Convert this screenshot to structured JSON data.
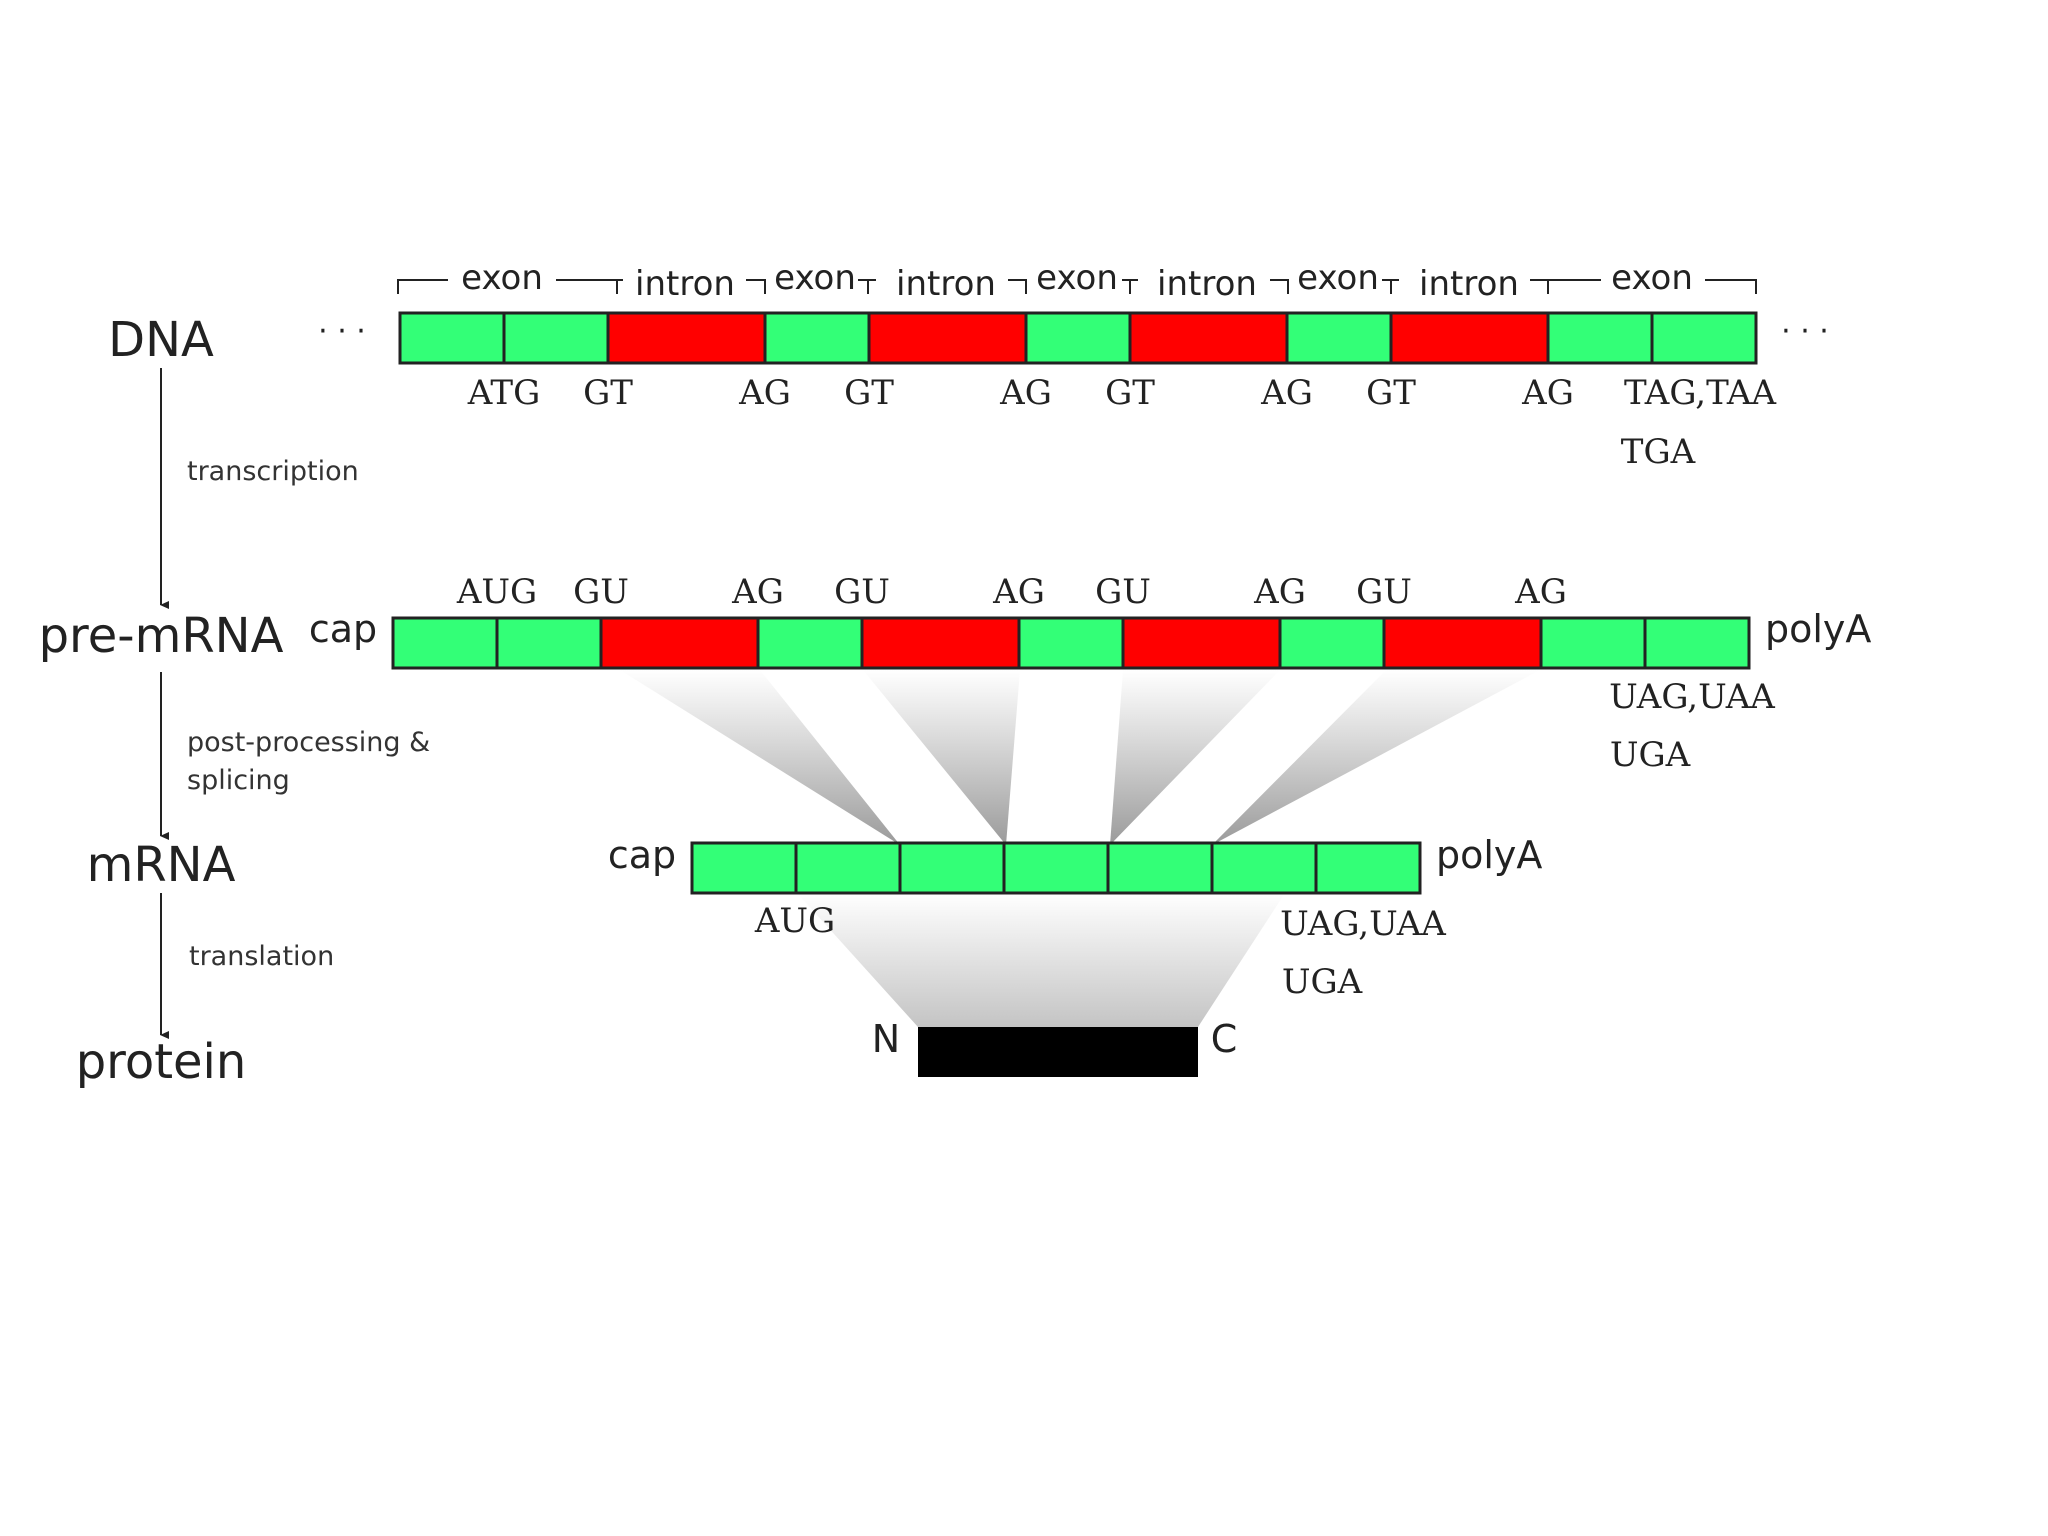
{
  "stages": {
    "dna": "DNA",
    "pre_mrna": "pre-mRNA",
    "mrna": "mRNA",
    "protein": "protein"
  },
  "processes": {
    "transcription": "transcription",
    "post_processing_line1": "post-processing &",
    "post_processing_line2": "splicing",
    "translation": "translation"
  },
  "dna_ellipsis": "· · ·",
  "region_labels": [
    "exon",
    "intron",
    "exon",
    "intron",
    "exon",
    "intron",
    "exon",
    "intron",
    "exon"
  ],
  "dna_sites": {
    "start": "ATG",
    "donor": "GT",
    "acceptor": "AG",
    "stop_line1": "TAG,TAA",
    "stop_line2": "TGA"
  },
  "rna_sites": {
    "start": "AUG",
    "donor": "GU",
    "acceptor": "AG",
    "stop_line1": "UAG,UAA",
    "stop_line2": "UGA"
  },
  "cap": "cap",
  "polya": "polyA",
  "protein_ends": {
    "n": "N",
    "c": "C"
  },
  "colors": {
    "exon": "#33ff77",
    "intron": "#ff0000",
    "outline": "#222222",
    "protein": "#000000",
    "shade_dark": "#999999",
    "shade_light": "#ffffff"
  }
}
